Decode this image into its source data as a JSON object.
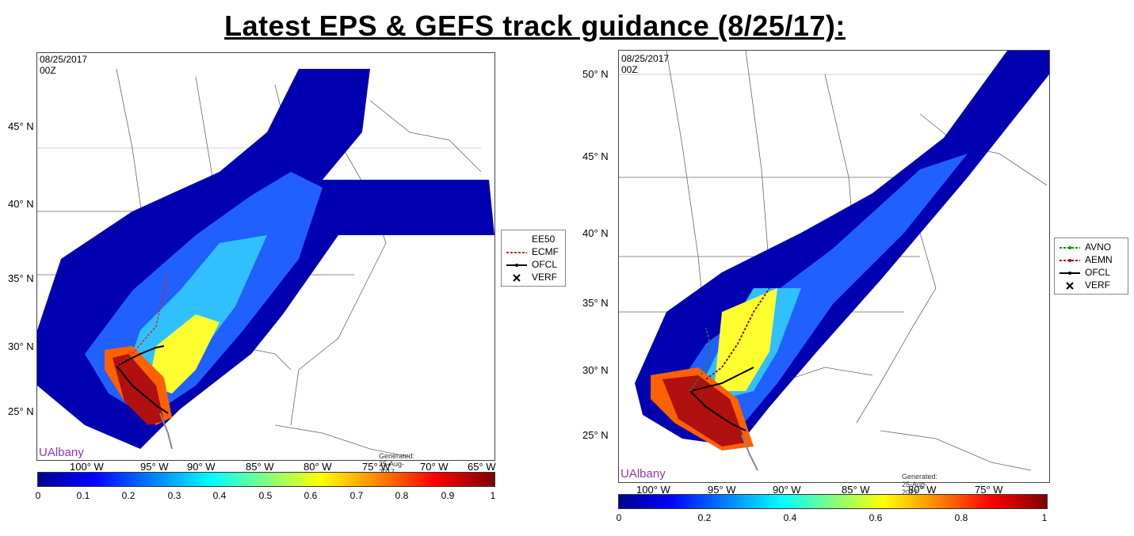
{
  "title": "Latest EPS & GEFS track guidance (8/25/17):",
  "left_map": {
    "date": "08/25/2017 00Z",
    "lat_labels": [
      "45° N",
      "40° N",
      "35° N",
      "30° N",
      "25° N"
    ],
    "lon_labels": [
      "100° W",
      "95° W",
      "90° W",
      "85° W",
      "80° W",
      "75° W",
      "70° W",
      "65° W"
    ],
    "branding": "UAlbany",
    "generated": "Generated: 25-Aug-2017 04:37:10ET",
    "legend": [
      {
        "label": "EE50",
        "color": "#ffffff"
      },
      {
        "label": "ECMF",
        "color": "#e02020"
      },
      {
        "label": "OFCL",
        "color": "#000000"
      },
      {
        "label": "VERF",
        "color": "#000000"
      }
    ],
    "colorbar_ticks": [
      "0",
      "0.1",
      "0.2",
      "0.3",
      "0.4",
      "0.5",
      "0.6",
      "0.7",
      "0.8",
      "0.9",
      "1"
    ]
  },
  "right_map": {
    "date": "08/25/2017 00Z",
    "lat_labels": [
      "50° N",
      "45° N",
      "40° N",
      "35° N",
      "30° N",
      "25° N"
    ],
    "lon_labels": [
      "100° W",
      "95° W",
      "90° W",
      "85° W",
      "80° W",
      "75° W"
    ],
    "branding": "UAlbany",
    "generated": "Generated: 25-Aug-2017 04:36:43ET",
    "legend": [
      {
        "label": "AVNO",
        "color": "#1a8a1a"
      },
      {
        "label": "AEMN",
        "color": "#8b1a1a"
      },
      {
        "label": "OFCL",
        "color": "#000000"
      },
      {
        "label": "VERF",
        "color": "#000000"
      }
    ],
    "colorbar_ticks": [
      "0",
      "0.2",
      "0.4",
      "0.6",
      "0.8",
      "1"
    ]
  }
}
